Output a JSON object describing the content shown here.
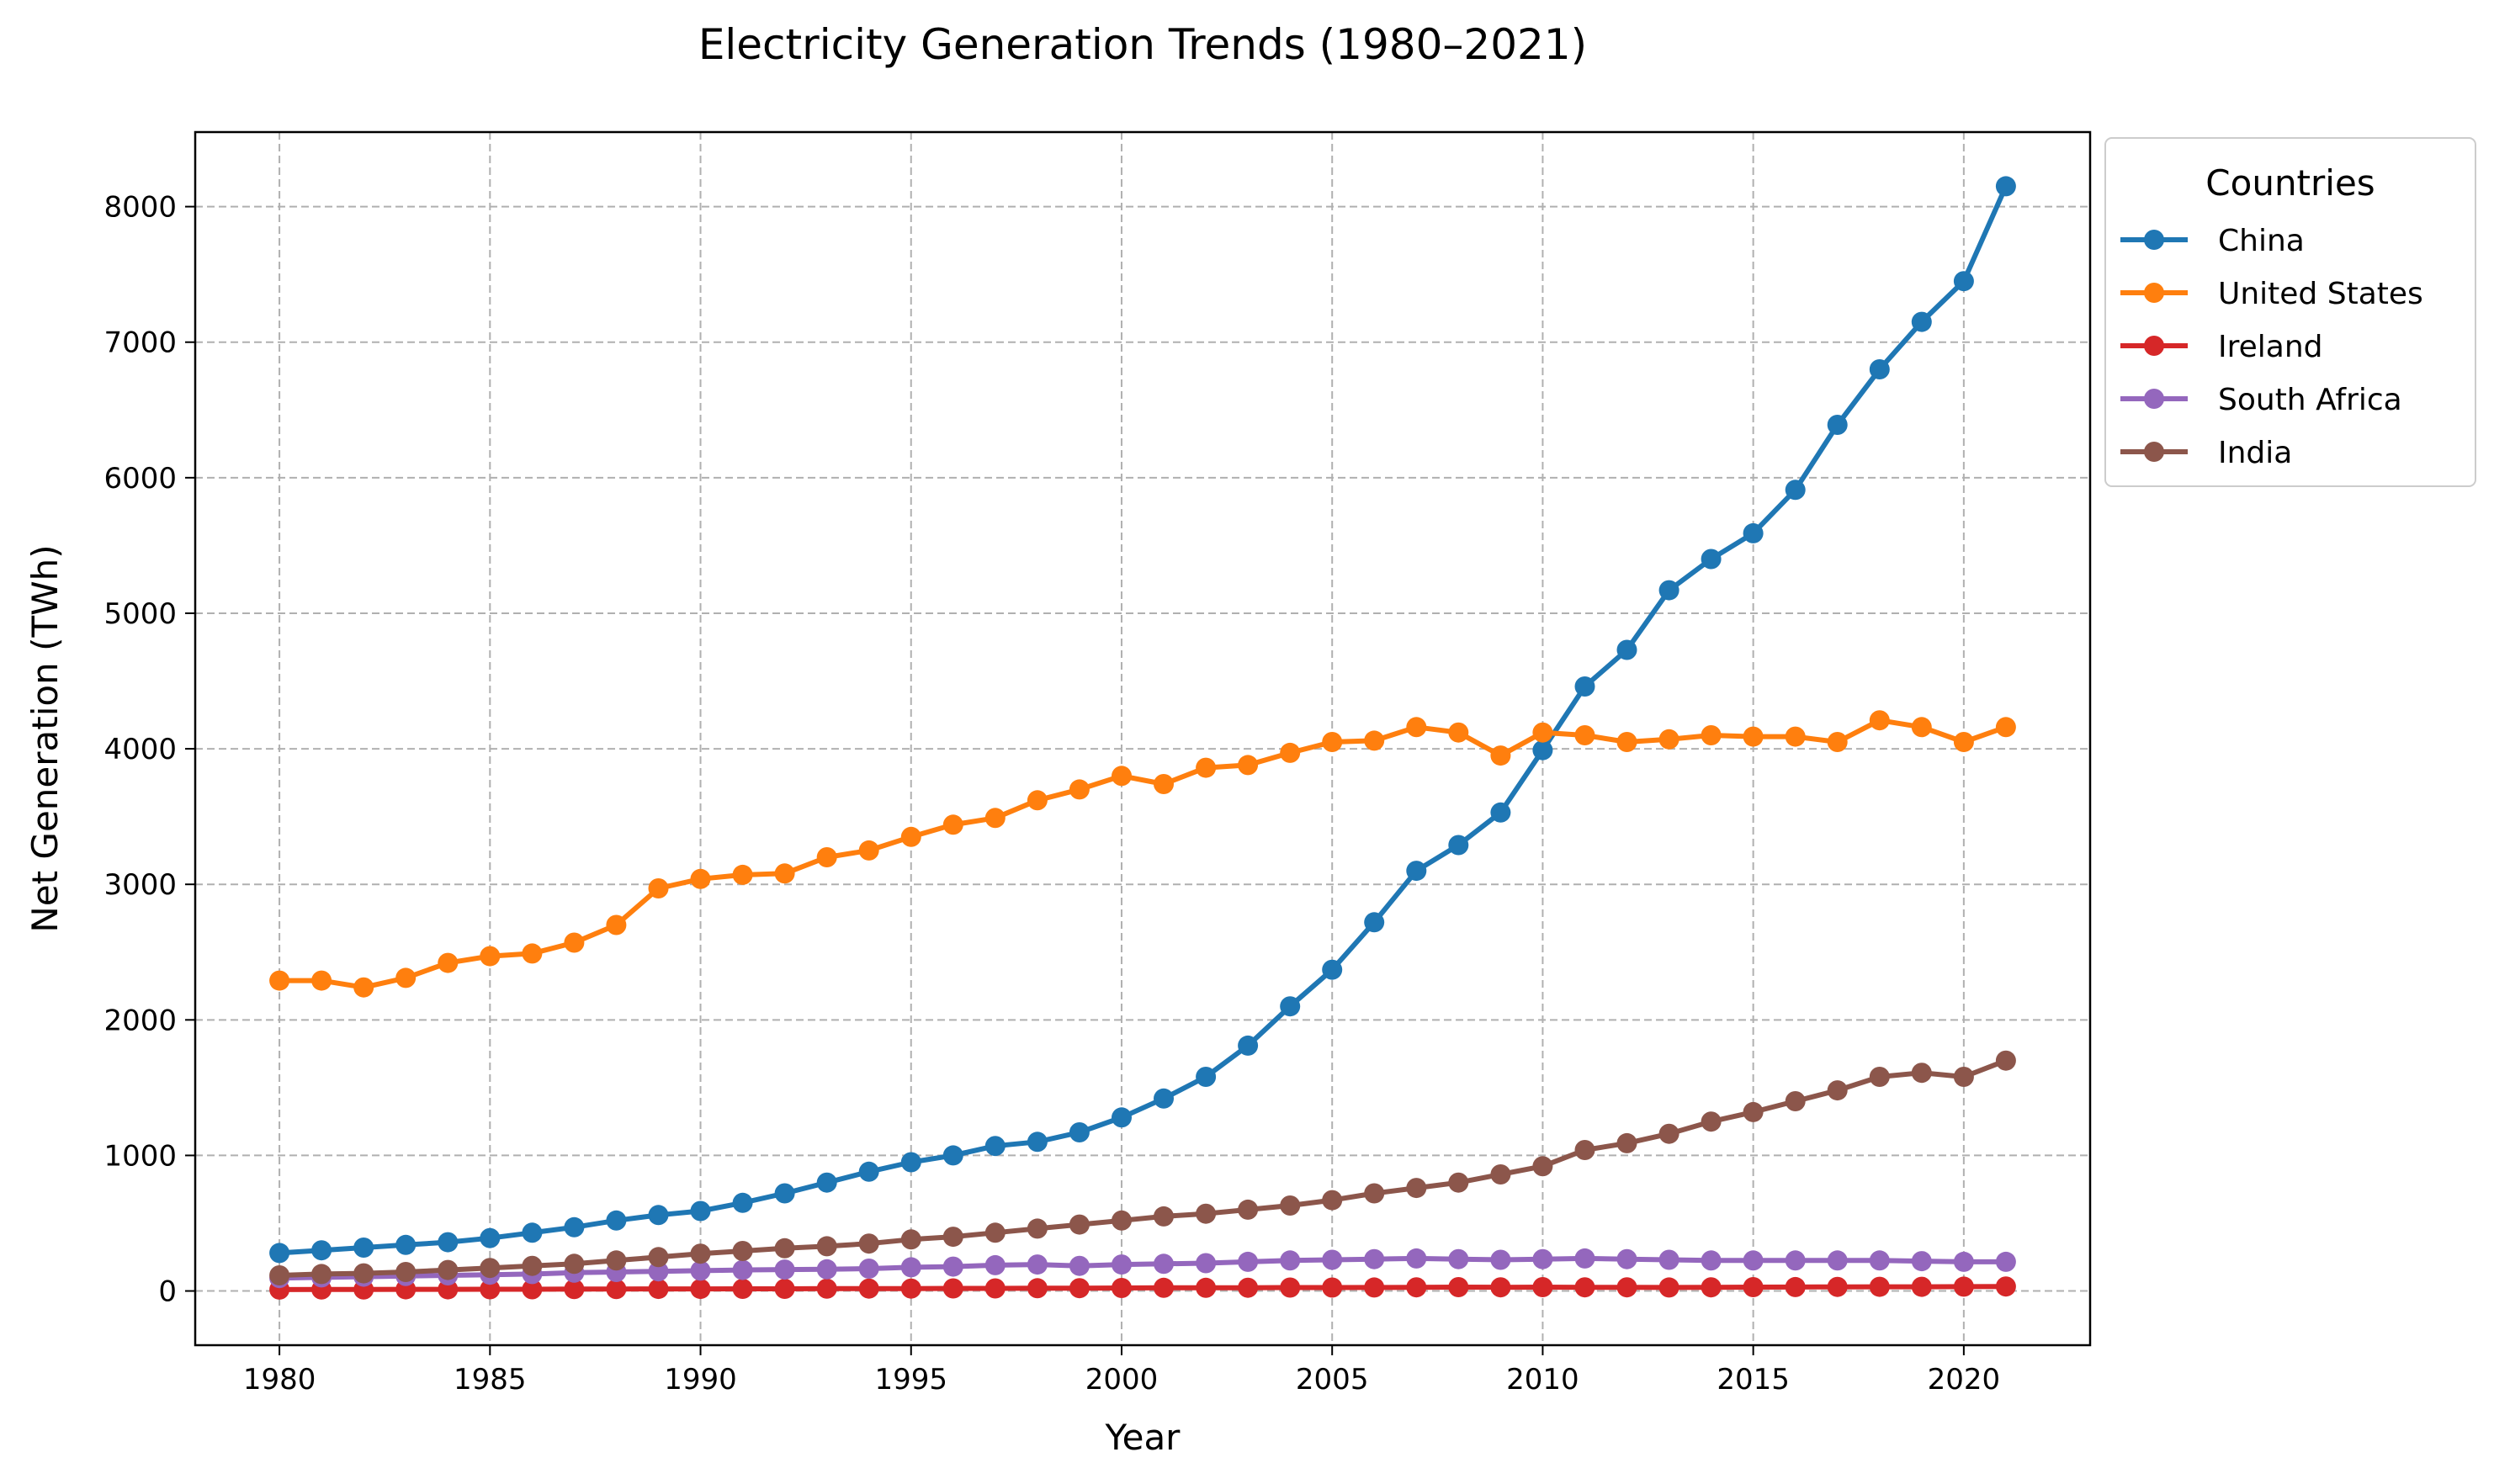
{
  "chart_data": {
    "type": "line",
    "title": "Electricity Generation Trends (1980–2021)",
    "xlabel": "Year",
    "ylabel": "Net Generation (TWh)",
    "xlim": [
      1978,
      2023
    ],
    "ylim": [
      -400,
      8550
    ],
    "xticks": [
      1980,
      1985,
      1990,
      1995,
      2000,
      2005,
      2010,
      2015,
      2020
    ],
    "yticks": [
      0,
      1000,
      2000,
      3000,
      4000,
      5000,
      6000,
      7000,
      8000
    ],
    "grid": true,
    "legend": {
      "title": "Countries",
      "placement": "outside-top-right"
    },
    "x": [
      1980,
      1981,
      1982,
      1983,
      1984,
      1985,
      1986,
      1987,
      1988,
      1989,
      1990,
      1991,
      1992,
      1993,
      1994,
      1995,
      1996,
      1997,
      1998,
      1999,
      2000,
      2001,
      2002,
      2003,
      2004,
      2005,
      2006,
      2007,
      2008,
      2009,
      2010,
      2011,
      2012,
      2013,
      2014,
      2015,
      2016,
      2017,
      2018,
      2019,
      2020,
      2021
    ],
    "series": [
      {
        "name": "China",
        "color": "#1f77b4",
        "values": [
          280,
          300,
          320,
          340,
          360,
          390,
          430,
          470,
          520,
          560,
          590,
          650,
          720,
          800,
          880,
          950,
          1000,
          1070,
          1100,
          1170,
          1280,
          1420,
          1580,
          1810,
          2100,
          2370,
          2720,
          3100,
          3290,
          3530,
          3990,
          4460,
          4730,
          5170,
          5400,
          5590,
          5910,
          6390,
          6800,
          7150,
          7450,
          8150
        ]
      },
      {
        "name": "United States",
        "color": "#ff7f0e",
        "values": [
          2290,
          2290,
          2240,
          2310,
          2420,
          2470,
          2490,
          2570,
          2700,
          2970,
          3040,
          3070,
          3080,
          3200,
          3250,
          3350,
          3440,
          3490,
          3620,
          3700,
          3800,
          3740,
          3860,
          3880,
          3970,
          4050,
          4060,
          4160,
          4120,
          3950,
          4120,
          4100,
          4050,
          4070,
          4100,
          4090,
          4090,
          4050,
          4210,
          4160,
          4050,
          4160
        ]
      },
      {
        "name": "Ireland",
        "color": "#d62728",
        "values": [
          10,
          11,
          11,
          12,
          12,
          13,
          13,
          14,
          14,
          15,
          15,
          16,
          16,
          17,
          18,
          18,
          19,
          19,
          20,
          21,
          22,
          23,
          23,
          24,
          25,
          25,
          26,
          27,
          28,
          27,
          28,
          27,
          27,
          26,
          27,
          28,
          29,
          30,
          31,
          31,
          32,
          33
        ]
      },
      {
        "name": "South Africa",
        "color": "#9467bd",
        "values": [
          95,
          100,
          105,
          110,
          115,
          120,
          125,
          135,
          140,
          145,
          150,
          155,
          158,
          160,
          165,
          175,
          180,
          190,
          195,
          185,
          195,
          200,
          205,
          215,
          225,
          230,
          235,
          240,
          235,
          230,
          235,
          240,
          235,
          230,
          225,
          225,
          225,
          225,
          225,
          220,
          215,
          215
        ]
      },
      {
        "name": "India",
        "color": "#8c564b",
        "values": [
          115,
          125,
          130,
          140,
          155,
          170,
          185,
          200,
          225,
          250,
          275,
          295,
          315,
          330,
          350,
          380,
          400,
          430,
          460,
          490,
          520,
          550,
          570,
          600,
          630,
          670,
          720,
          760,
          800,
          860,
          920,
          1040,
          1090,
          1160,
          1250,
          1320,
          1400,
          1480,
          1580,
          1610,
          1580,
          1700
        ]
      }
    ]
  }
}
